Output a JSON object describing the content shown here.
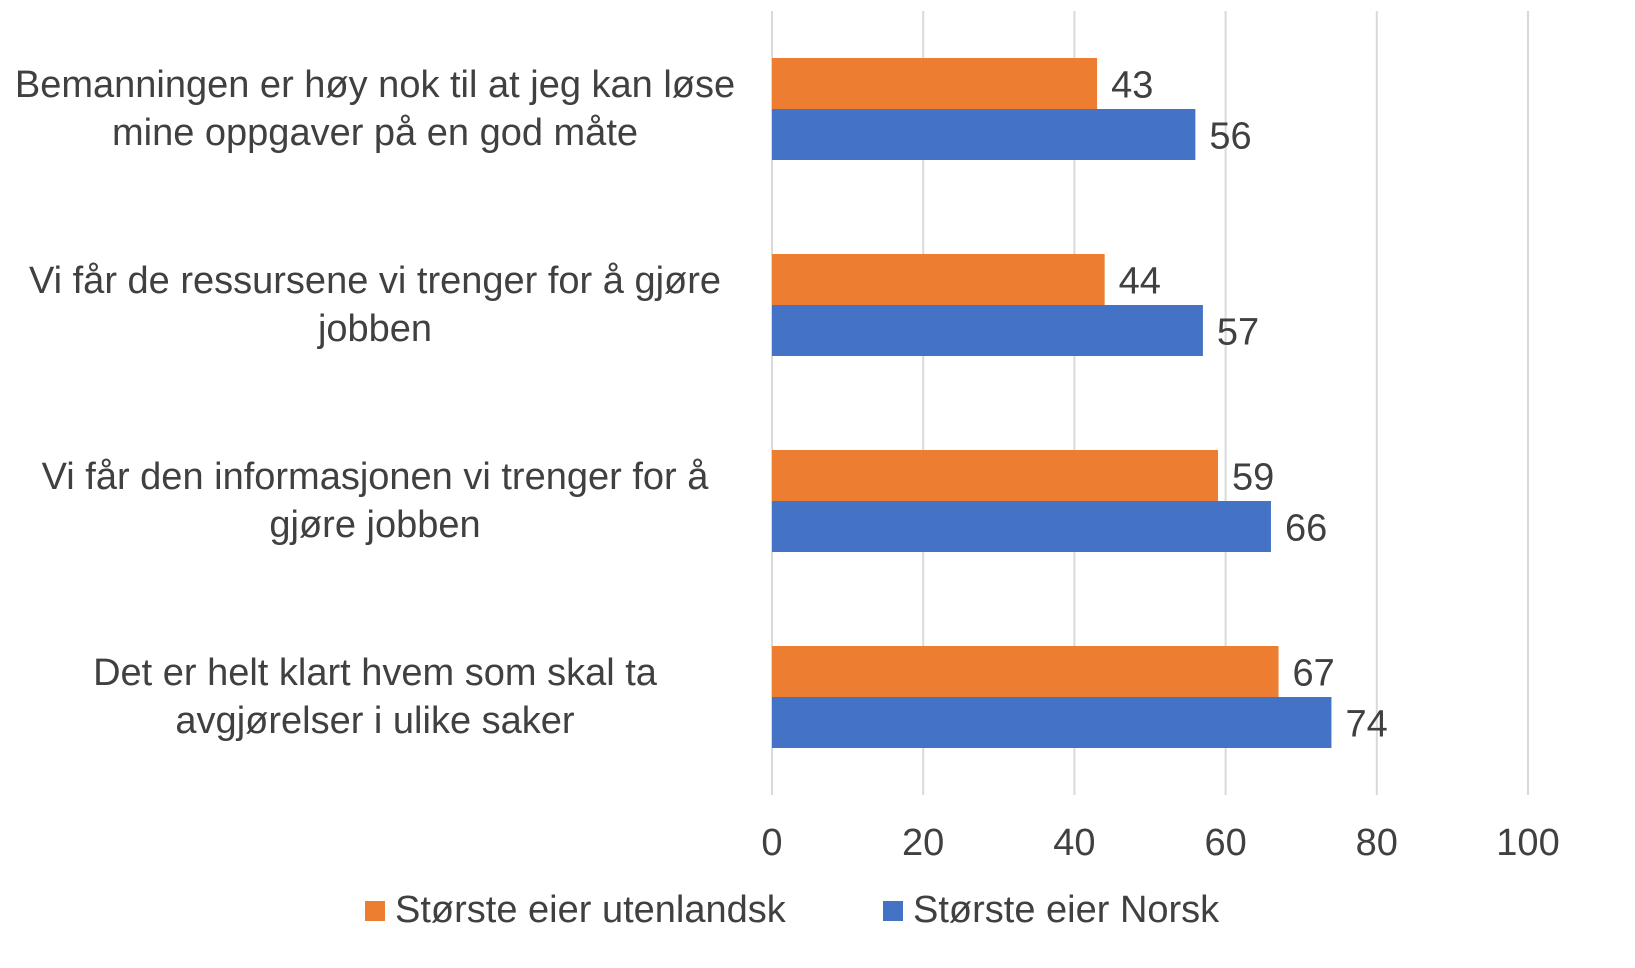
{
  "chart_data": {
    "type": "hbar",
    "categories": [
      "Bemanningen er høy nok til at jeg kan løse mine oppgaver på en god måte",
      "Vi får de ressursene vi trenger for å gjøre jobben",
      "Vi får den informasjonen vi trenger for å gjøre jobben",
      "Det er helt klart hvem som skal ta avgjørelser i ulike saker"
    ],
    "series": [
      {
        "name": "Største eier utenlandsk",
        "color": "#ED7D31",
        "values": [
          43,
          44,
          59,
          67
        ]
      },
      {
        "name": "Største eier Norsk",
        "color": "#4472C4",
        "values": [
          56,
          57,
          66,
          74
        ]
      }
    ],
    "xlim": [
      0,
      100
    ],
    "xticks": [
      0,
      20,
      40,
      60,
      80,
      100
    ],
    "grid": true,
    "legend": "bottom"
  }
}
